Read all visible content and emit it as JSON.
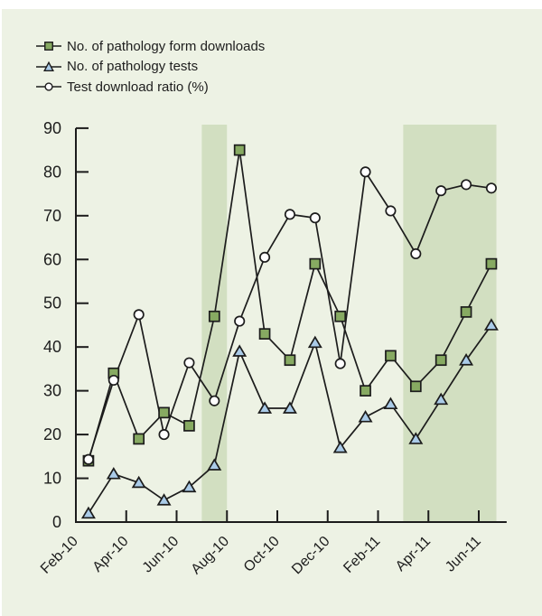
{
  "legend": {
    "items": [
      {
        "label": "No. of pathology form downloads",
        "marker": "square"
      },
      {
        "label": "No. of pathology tests",
        "marker": "triangle"
      },
      {
        "label": "Test download ratio (%)",
        "marker": "circle"
      }
    ]
  },
  "colors": {
    "background": "#edf2e4",
    "highlight_band": "#d2dfc1",
    "line": "#1c1c1c",
    "square_fill": "#87aa62",
    "triangle_fill": "#aacbe8",
    "circle_fill": "#ffffff",
    "page_margin": "#ffffff"
  },
  "chart_data": {
    "type": "line",
    "x": [
      "Feb-10",
      "Mar-10",
      "Apr-10",
      "May-10",
      "Jun-10",
      "Jul-10",
      "Aug-10",
      "Sep-10",
      "Oct-10",
      "Nov-10",
      "Dec-10",
      "Jan-11",
      "Feb-11",
      "Mar-11",
      "Apr-11",
      "May-11",
      "Jun-11"
    ],
    "x_tick_labels": [
      "Feb-10",
      "Apr-10",
      "Jun-10",
      "Aug-10",
      "Oct-10",
      "Dec-10",
      "Feb-11",
      "Apr-11",
      "Jun-11"
    ],
    "series": [
      {
        "name": "No. of pathology form downloads",
        "marker": "square",
        "values": [
          14,
          34,
          19,
          25,
          22,
          47,
          85,
          43,
          37,
          59,
          47,
          30,
          38,
          31,
          37,
          48,
          59
        ]
      },
      {
        "name": "No. of pathology tests",
        "marker": "triangle",
        "values": [
          2,
          11,
          9,
          5,
          8,
          13,
          39,
          26,
          26,
          41,
          17,
          24,
          27,
          19,
          28,
          37,
          45
        ]
      },
      {
        "name": "Test download ratio (%)",
        "marker": "circle",
        "values": [
          14.3,
          32.4,
          47.4,
          20,
          36.4,
          27.7,
          45.9,
          60.5,
          70.3,
          69.5,
          36.2,
          80,
          71.1,
          61.3,
          75.7,
          77.1,
          76.3
        ]
      }
    ],
    "ylim": [
      0,
      90
    ],
    "ytick_step": 10,
    "highlight_bands": [
      {
        "from_month": 5,
        "to_month": 6
      },
      {
        "from_month": 13,
        "to_month": 16.7
      }
    ],
    "legend_position": "top-left",
    "grid": false
  }
}
